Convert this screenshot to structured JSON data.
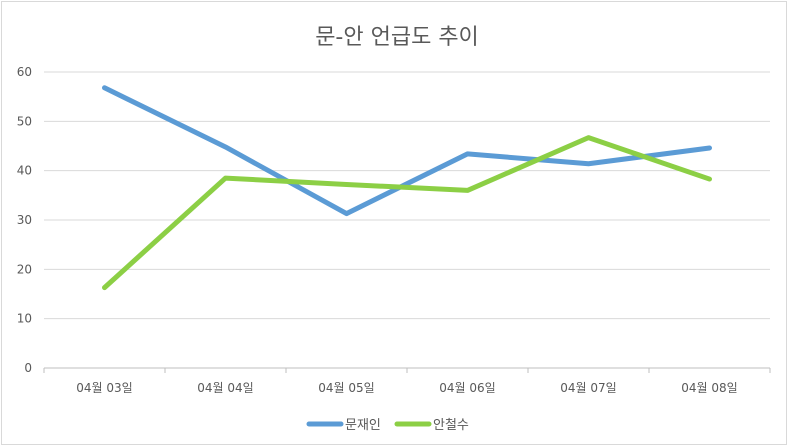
{
  "chart_data": {
    "type": "line",
    "title": "문-안 언급도 추이",
    "xlabel": "",
    "ylabel": "",
    "categories": [
      "04월 03일",
      "04월 04일",
      "04월 05일",
      "04월 06일",
      "04월 07일",
      "04월 08일"
    ],
    "ylim": [
      0,
      60
    ],
    "yticks": [
      0,
      10,
      20,
      30,
      40,
      50,
      60
    ],
    "grid": true,
    "legend": "bottom",
    "series": [
      {
        "name": "문재인",
        "color": "#5b9bd5",
        "values": [
          56.8,
          44.8,
          31.3,
          43.4,
          41.4,
          44.6
        ]
      },
      {
        "name": "안철수",
        "color": "#8ccf45",
        "values": [
          16.3,
          38.5,
          37.2,
          36.0,
          46.7,
          38.3
        ]
      }
    ]
  }
}
